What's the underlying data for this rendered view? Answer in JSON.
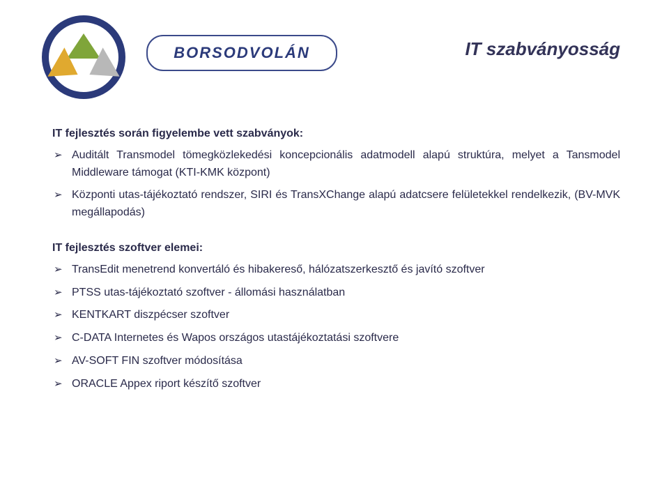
{
  "brand_text": "BORSODVOLÁN",
  "page_title": "IT szabványosság",
  "section1": {
    "heading": "IT fejlesztés során figyelembe vett szabványok:",
    "items": [
      "Auditált Transmodel tömegközlekedési koncepcionális adatmodell alapú struktúra, melyet a Tansmodel Middleware támogat (KTI-KMK központ)",
      "Központi utas-tájékoztató rendszer, SIRI és TransXChange alapú adatcsere felületekkel rendelkezik, (BV-MVK megállapodás)"
    ]
  },
  "section2": {
    "heading": "IT fejlesztés szoftver elemei:",
    "items": [
      "TransEdit menetrend konvertáló és hibakereső, hálózatszerkesztő és javító szoftver",
      "PTSS utas-tájékoztató szoftver - állomási használatban",
      "KENTKART diszpécser szoftver",
      "C-DATA Internetes és Wapos országos utastájékoztatási szoftvere",
      "AV-SOFT FIN szoftver módosítása",
      "ORACLE Appex riport készítő szoftver"
    ]
  },
  "colors": {
    "text": "#2a2a4a",
    "brand_border": "#3b4a8a",
    "logo_ring": "#2b3a7a",
    "logo_green": "#7fa53a",
    "logo_yellow": "#e0a92f",
    "logo_gray": "#b8b8b8",
    "background": "#ffffff"
  },
  "typography": {
    "title_fontsize": 26,
    "body_fontsize": 16,
    "brand_fontsize": 22,
    "font_family": "Verdana"
  }
}
